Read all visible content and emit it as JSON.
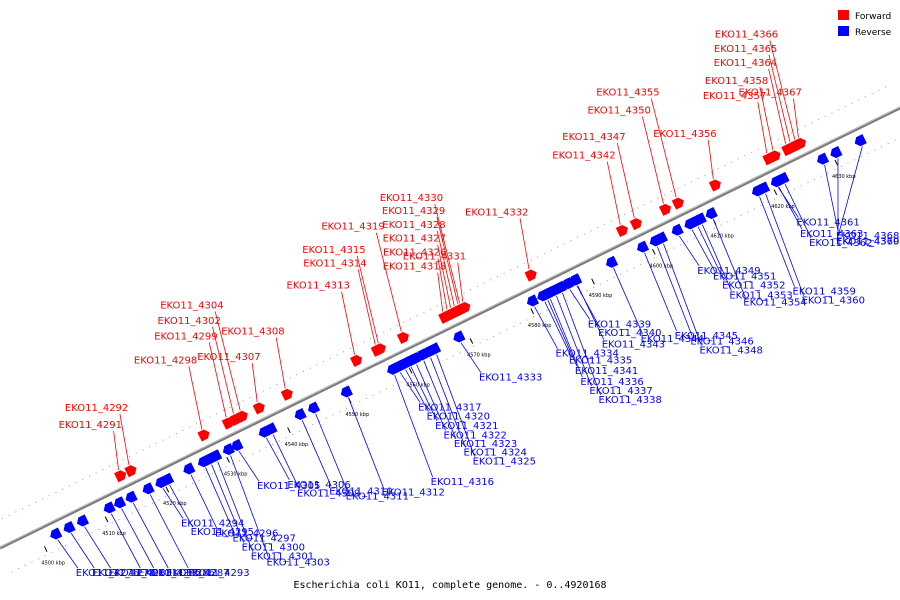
{
  "caption": "Escherichia coli KO11, complete genome. - 0..4920168",
  "legend": [
    {
      "label": "Forward",
      "color": "#ff0000"
    },
    {
      "label": "Reverse",
      "color": "#0000ff"
    }
  ],
  "colors": {
    "forward": "#ff0000",
    "reverse": "#0000ff",
    "backbone": "#808080"
  },
  "scale_marks": [
    {
      "label": "4500 kbp",
      "pos": 4500
    },
    {
      "label": "4510 kbp",
      "pos": 4510
    },
    {
      "label": "4520 kbp",
      "pos": 4520
    },
    {
      "label": "4530 kbp",
      "pos": 4530
    },
    {
      "label": "4540 kbp",
      "pos": 4540
    },
    {
      "label": "4550 kbp",
      "pos": 4550
    },
    {
      "label": "4560 kbp",
      "pos": 4560
    },
    {
      "label": "4570 kbp",
      "pos": 4570
    },
    {
      "label": "4580 kbp",
      "pos": 4580
    },
    {
      "label": "4590 kbp",
      "pos": 4590
    },
    {
      "label": "4600 kbp",
      "pos": 4600
    },
    {
      "label": "4610 kbp",
      "pos": 4610
    },
    {
      "label": "4620 kbp",
      "pos": 4620
    },
    {
      "label": "4630 kbp",
      "pos": 4630
    }
  ],
  "forward_genes": [
    {
      "label": "EKO11_4291",
      "pos": 4514.8
    },
    {
      "label": "EKO11_4292",
      "pos": 4516.5
    },
    {
      "label": "EKO11_4298",
      "pos": 4528.5
    },
    {
      "label": "EKO11_4299",
      "pos": 4532.5
    },
    {
      "label": "EKO11_4302",
      "pos": 4533.7
    },
    {
      "label": "EKO11_4304",
      "pos": 4534.8
    },
    {
      "label": "EKO11_4307",
      "pos": 4537.6
    },
    {
      "label": "EKO11_4308",
      "pos": 4542.2
    },
    {
      "label": "EKO11_4313",
      "pos": 4553.6
    },
    {
      "label": "EKO11_4314",
      "pos": 4557.0
    },
    {
      "label": "EKO11_4315",
      "pos": 4557.5
    },
    {
      "label": "EKO11_4319",
      "pos": 4561.3
    },
    {
      "label": "EKO11_4318",
      "pos": 4568.1
    },
    {
      "label": "EKO11_4326",
      "pos": 4568.8
    },
    {
      "label": "EKO11_4327",
      "pos": 4569.4
    },
    {
      "label": "EKO11_4328",
      "pos": 4570.0
    },
    {
      "label": "EKO11_4329",
      "pos": 4570.6
    },
    {
      "label": "EKO11_4330",
      "pos": 4570.9
    },
    {
      "label": "EKO11_4331",
      "pos": 4571.4
    },
    {
      "label": "EKO11_4332",
      "pos": 4582.3
    },
    {
      "label": "EKO11_4342",
      "pos": 4597.3
    },
    {
      "label": "EKO11_4347",
      "pos": 4599.6
    },
    {
      "label": "EKO11_4350",
      "pos": 4604.4
    },
    {
      "label": "EKO11_4355",
      "pos": 4606.5
    },
    {
      "label": "EKO11_4356",
      "pos": 4612.6
    },
    {
      "label": "EKO11_4357",
      "pos": 4621.4
    },
    {
      "label": "EKO11_4358",
      "pos": 4622.4
    },
    {
      "label": "EKO11_4364",
      "pos": 4624.5
    },
    {
      "label": "EKO11_4365",
      "pos": 4625.2
    },
    {
      "label": "EKO11_4366",
      "pos": 4626.0
    },
    {
      "label": "EKO11_4367",
      "pos": 4626.6
    }
  ],
  "reverse_genes": [
    {
      "label": "EKO11_4276",
      "pos": 4502.2
    },
    {
      "label": "EKO11_4278",
      "pos": 4504.4
    },
    {
      "label": "EKO11_4283",
      "pos": 4506.6
    },
    {
      "label": "EKO11_4285",
      "pos": 4511.0
    },
    {
      "label": "EKO11_4286",
      "pos": 4512.7
    },
    {
      "label": "EKO11_4287",
      "pos": 4514.6
    },
    {
      "label": "EKO11_4293",
      "pos": 4517.4
    },
    {
      "label": "EKO11_4294",
      "pos": 4519.5
    },
    {
      "label": "EKO11_4295",
      "pos": 4520.6
    },
    {
      "label": "EKO11_4296",
      "pos": 4524.1
    },
    {
      "label": "EKO11_4297",
      "pos": 4526.5
    },
    {
      "label": "EKO11_4300",
      "pos": 4527.5
    },
    {
      "label": "EKO11_4301",
      "pos": 4528.5
    },
    {
      "label": "EKO11_4303",
      "pos": 4530.6
    },
    {
      "label": "EKO11_4305",
      "pos": 4532.0
    },
    {
      "label": "EKO11_4306",
      "pos": 4536.5
    },
    {
      "label": "EKO11_4309",
      "pos": 4537.6
    },
    {
      "label": "EKO11_4310",
      "pos": 4542.4
    },
    {
      "label": "EKO11_4311",
      "pos": 4544.6
    },
    {
      "label": "EKO11_4312",
      "pos": 4550.0
    },
    {
      "label": "EKO11_4316",
      "pos": 4557.6
    },
    {
      "label": "EKO11_4317",
      "pos": 4558.5
    },
    {
      "label": "EKO11_4320",
      "pos": 4559.4
    },
    {
      "label": "EKO11_4321",
      "pos": 4560.3
    },
    {
      "label": "EKO11_4322",
      "pos": 4561.2
    },
    {
      "label": "EKO11_4323",
      "pos": 4562.4
    },
    {
      "label": "EKO11_4324",
      "pos": 4563.5
    },
    {
      "label": "EKO11_4325",
      "pos": 4564.5
    },
    {
      "label": "EKO11_4333",
      "pos": 4568.5
    },
    {
      "label": "EKO11_4334",
      "pos": 4580.6
    },
    {
      "label": "EKO11_4335",
      "pos": 4582.3
    },
    {
      "label": "EKO11_4336",
      "pos": 4583.2
    },
    {
      "label": "EKO11_4337",
      "pos": 4584.2
    },
    {
      "label": "EKO11_4338",
      "pos": 4585.2
    },
    {
      "label": "EKO11_4339",
      "pos": 4586.4
    },
    {
      "label": "EKO11_4340",
      "pos": 4587.6
    },
    {
      "label": "EKO11_4341",
      "pos": 4582.8
    },
    {
      "label": "EKO11_4343",
      "pos": 4587.7
    },
    {
      "label": "EKO11_4344",
      "pos": 4593.6
    },
    {
      "label": "EKO11_4345",
      "pos": 4598.7
    },
    {
      "label": "EKO11_4346",
      "pos": 4600.8
    },
    {
      "label": "EKO11_4348",
      "pos": 4601.8
    },
    {
      "label": "EKO11_4349",
      "pos": 4604.4
    },
    {
      "label": "EKO11_4351",
      "pos": 4606.5
    },
    {
      "label": "EKO11_4352",
      "pos": 4607.5
    },
    {
      "label": "EKO11_4353",
      "pos": 4608.2
    },
    {
      "label": "EKO11_4354",
      "pos": 4610.0
    },
    {
      "label": "EKO11_4359",
      "pos": 4617.6
    },
    {
      "label": "EKO11_4360",
      "pos": 4618.6
    },
    {
      "label": "EKO11_4361",
      "pos": 4620.7
    },
    {
      "label": "EKO11_4362",
      "pos": 4621.8
    },
    {
      "label": "EKO11_4363",
      "pos": 4620.8
    },
    {
      "label": "EKO11_4368",
      "pos": 4628.3
    },
    {
      "label": "EKO11_4369",
      "pos": 4630.5
    },
    {
      "label": "EKO11_4370",
      "pos": 4634.5
    }
  ]
}
